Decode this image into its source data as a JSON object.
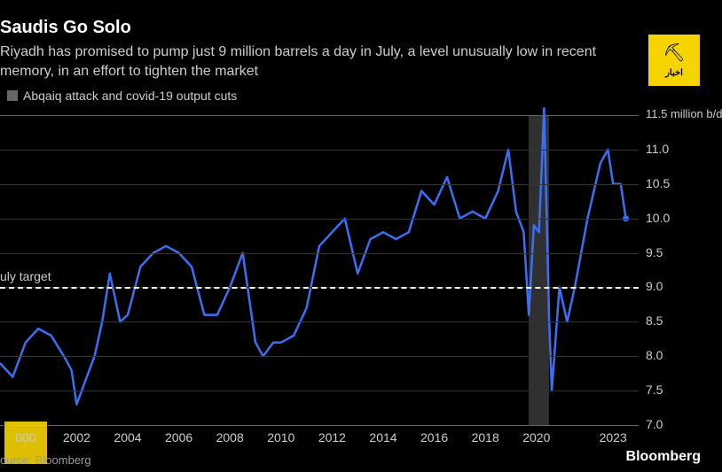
{
  "title": "Saudis Go Solo",
  "subtitle": "Riyadh has promised to pump just 9 million barrels a day in July, a level unusually low in recent memory, in an effort to tighten the market",
  "legend_label": "Abqaiq attack and covid-19 output cuts",
  "target_label": "uly target",
  "source": "ource: Bloomberg",
  "logo": "Bloomberg",
  "watermark_text": "اخبار",
  "chart": {
    "type": "line",
    "line_color": "#3b6ff5",
    "line_width": 2.5,
    "background_color": "#000000",
    "grid_color": "#333333",
    "baseline_color": "#666666",
    "shaded_color": "#606060",
    "dashed_color": "#ffffff",
    "text_color": "#cccccc",
    "ylim": [
      7.0,
      11.5
    ],
    "y_ticks": [
      7.0,
      7.5,
      8.0,
      8.5,
      9.0,
      9.5,
      10.0,
      10.5,
      11.0,
      11.5
    ],
    "y_tick_labels": [
      "7.0",
      "7.5",
      "8.0",
      "8.5",
      "9.0",
      "9.5",
      "10.0",
      "10.5",
      "11.0",
      "11.5 million b/d"
    ],
    "target_value": 9.0,
    "xlim": [
      1999,
      2024
    ],
    "x_ticks": [
      2000,
      2002,
      2004,
      2006,
      2008,
      2010,
      2012,
      2014,
      2016,
      2018,
      2020,
      2023
    ],
    "x_tick_labels": [
      "000",
      "2002",
      "2004",
      "2006",
      "2008",
      "2010",
      "2012",
      "2014",
      "2016",
      "2018",
      "2020",
      "2023"
    ],
    "shaded_ranges": [
      {
        "x0": 2019.7,
        "x1": 2020.5
      }
    ],
    "series": [
      {
        "x": 1999.0,
        "y": 7.9
      },
      {
        "x": 1999.5,
        "y": 7.7
      },
      {
        "x": 2000.0,
        "y": 8.2
      },
      {
        "x": 2000.5,
        "y": 8.4
      },
      {
        "x": 2001.0,
        "y": 8.3
      },
      {
        "x": 2001.5,
        "y": 8.0
      },
      {
        "x": 2001.8,
        "y": 7.8
      },
      {
        "x": 2002.0,
        "y": 7.3
      },
      {
        "x": 2002.3,
        "y": 7.6
      },
      {
        "x": 2002.7,
        "y": 8.0
      },
      {
        "x": 2003.0,
        "y": 8.5
      },
      {
        "x": 2003.3,
        "y": 9.2
      },
      {
        "x": 2003.7,
        "y": 8.5
      },
      {
        "x": 2004.0,
        "y": 8.6
      },
      {
        "x": 2004.5,
        "y": 9.3
      },
      {
        "x": 2005.0,
        "y": 9.5
      },
      {
        "x": 2005.5,
        "y": 9.6
      },
      {
        "x": 2006.0,
        "y": 9.5
      },
      {
        "x": 2006.5,
        "y": 9.3
      },
      {
        "x": 2007.0,
        "y": 8.6
      },
      {
        "x": 2007.5,
        "y": 8.6
      },
      {
        "x": 2008.0,
        "y": 9.0
      },
      {
        "x": 2008.5,
        "y": 9.5
      },
      {
        "x": 2009.0,
        "y": 8.2
      },
      {
        "x": 2009.3,
        "y": 8.0
      },
      {
        "x": 2009.7,
        "y": 8.2
      },
      {
        "x": 2010.0,
        "y": 8.2
      },
      {
        "x": 2010.5,
        "y": 8.3
      },
      {
        "x": 2011.0,
        "y": 8.7
      },
      {
        "x": 2011.5,
        "y": 9.6
      },
      {
        "x": 2012.0,
        "y": 9.8
      },
      {
        "x": 2012.5,
        "y": 10.0
      },
      {
        "x": 2013.0,
        "y": 9.2
      },
      {
        "x": 2013.5,
        "y": 9.7
      },
      {
        "x": 2014.0,
        "y": 9.8
      },
      {
        "x": 2014.5,
        "y": 9.7
      },
      {
        "x": 2015.0,
        "y": 9.8
      },
      {
        "x": 2015.5,
        "y": 10.4
      },
      {
        "x": 2016.0,
        "y": 10.2
      },
      {
        "x": 2016.5,
        "y": 10.6
      },
      {
        "x": 2017.0,
        "y": 10.0
      },
      {
        "x": 2017.5,
        "y": 10.1
      },
      {
        "x": 2018.0,
        "y": 10.0
      },
      {
        "x": 2018.5,
        "y": 10.4
      },
      {
        "x": 2018.9,
        "y": 11.0
      },
      {
        "x": 2019.2,
        "y": 10.1
      },
      {
        "x": 2019.5,
        "y": 9.8
      },
      {
        "x": 2019.7,
        "y": 8.6
      },
      {
        "x": 2019.9,
        "y": 9.9
      },
      {
        "x": 2020.1,
        "y": 9.8
      },
      {
        "x": 2020.3,
        "y": 11.6
      },
      {
        "x": 2020.5,
        "y": 8.5
      },
      {
        "x": 2020.6,
        "y": 7.5
      },
      {
        "x": 2020.9,
        "y": 9.0
      },
      {
        "x": 2021.2,
        "y": 8.5
      },
      {
        "x": 2021.5,
        "y": 9.0
      },
      {
        "x": 2022.0,
        "y": 10.0
      },
      {
        "x": 2022.5,
        "y": 10.8
      },
      {
        "x": 2022.8,
        "y": 11.0
      },
      {
        "x": 2023.0,
        "y": 10.5
      },
      {
        "x": 2023.3,
        "y": 10.5
      },
      {
        "x": 2023.5,
        "y": 10.0
      }
    ]
  }
}
